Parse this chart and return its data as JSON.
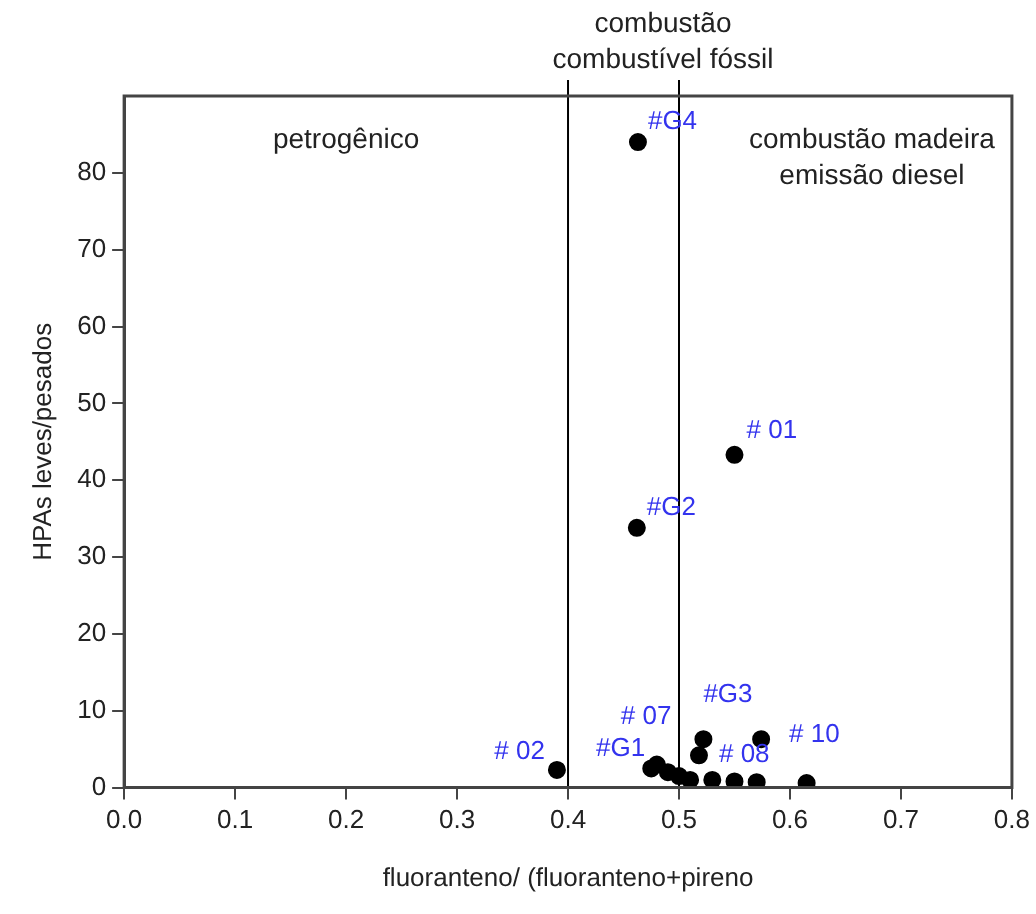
{
  "chart_data": {
    "type": "scatter",
    "xlabel": "fluoranteno/ (fluoranteno+pireno",
    "ylabel": "HPAs leves/pesados",
    "xlim": [
      0,
      0.8
    ],
    "xticks": [
      {
        "value": 0,
        "label": "0.0"
      },
      0.1,
      0.2,
      0.3,
      0.4,
      0.5,
      0.6,
      0.7,
      0.8
    ],
    "ylim": [
      0,
      90
    ],
    "yticks": [
      0,
      10,
      20,
      30,
      40,
      50,
      60,
      70,
      80
    ],
    "grid": false,
    "legend": false,
    "marker": "circle",
    "series": [
      {
        "color": "#000000",
        "x": [
          0.463,
          0.55,
          0.462,
          0.522,
          0.574,
          0.518,
          0.39,
          0.48,
          0.475,
          0.49,
          0.5,
          0.51,
          0.53,
          0.55,
          0.57,
          0.615
        ],
        "values": [
          84,
          43.3,
          33.8,
          6.3,
          6.3,
          4.2,
          2.3,
          3,
          2.5,
          2,
          1.5,
          1,
          1,
          0.8,
          0.7,
          0.6
        ]
      }
    ],
    "ref_lines": [
      {
        "axis": "x",
        "value": 0.4,
        "color": "#000000"
      },
      {
        "axis": "x",
        "value": 0.5,
        "color": "#000000"
      }
    ],
    "annotations": [
      "petrogênico",
      "combustão\ncombustível fóssil",
      "combustão madeira\nemissão diesel",
      {
        "text": "#G4",
        "x": 0.463,
        "y": 84
      },
      {
        "text": "# 01",
        "x": 0.55,
        "y": 43.3
      },
      {
        "text": "#G2",
        "x": 0.462,
        "y": 33.8
      },
      {
        "text": "#G3",
        "x": 0.522,
        "y": 6.3
      },
      {
        "text": "# 10",
        "x": 0.574,
        "y": 6.3
      },
      {
        "text": "# 08",
        "x": 0.518,
        "y": 4.2
      },
      {
        "text": "# 02",
        "x": 0.39,
        "y": 2.3
      },
      {
        "text": "# 07",
        "x": 0.48,
        "y": 3
      },
      {
        "text": "#G1",
        "x": 0.475,
        "y": 2.5
      }
    ]
  }
}
